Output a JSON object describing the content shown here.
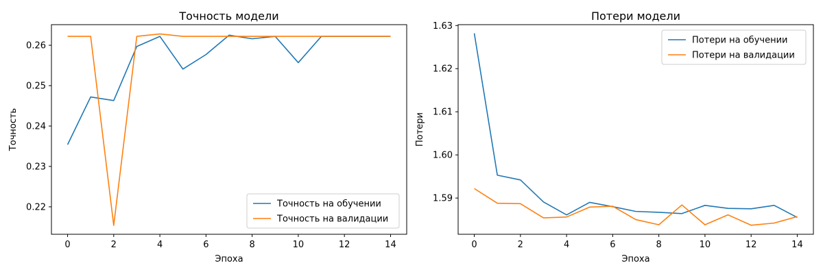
{
  "chart_data": [
    {
      "type": "line",
      "title": "Точность модели",
      "xlabel": "Эпоха",
      "ylabel": "Точность",
      "xlim": [
        -0.7,
        14.7
      ],
      "ylim": [
        0.2132,
        0.2651
      ],
      "xticks": [
        0,
        2,
        4,
        6,
        8,
        10,
        12,
        14
      ],
      "yticks": [
        0.22,
        0.23,
        0.24,
        0.25,
        0.26
      ],
      "ytick_labels": [
        "0.22",
        "0.23",
        "0.24",
        "0.25",
        "0.26"
      ],
      "x": [
        0,
        1,
        2,
        3,
        4,
        5,
        6,
        7,
        8,
        9,
        10,
        11,
        12,
        13,
        14
      ],
      "legend_position": "lower-right",
      "grid": false,
      "series": [
        {
          "name": "Точность на обучении",
          "color": "#1f77b4",
          "values": [
            0.2354,
            0.2472,
            0.2463,
            0.2597,
            0.2622,
            0.2541,
            0.2577,
            0.2625,
            0.2616,
            0.2622,
            0.2557,
            0.2622,
            0.2622,
            0.2622,
            0.2622
          ]
        },
        {
          "name": "Точность на валидации",
          "color": "#ff7f0e",
          "values": [
            0.2622,
            0.2622,
            0.2154,
            0.2622,
            0.2628,
            0.2622,
            0.2622,
            0.2622,
            0.2622,
            0.2622,
            0.2622,
            0.2622,
            0.2622,
            0.2622,
            0.2622
          ]
        }
      ]
    },
    {
      "type": "line",
      "title": "Потери модели",
      "xlabel": "Эпоха",
      "ylabel": "Потери",
      "xlim": [
        -0.7,
        14.7
      ],
      "ylim": [
        1.5816,
        1.6302
      ],
      "xticks": [
        0,
        2,
        4,
        6,
        8,
        10,
        12,
        14
      ],
      "yticks": [
        1.59,
        1.6,
        1.61,
        1.62,
        1.63
      ],
      "ytick_labels": [
        "1.59",
        "1.60",
        "1.61",
        "1.62",
        "1.63"
      ],
      "x": [
        0,
        1,
        2,
        3,
        4,
        5,
        6,
        7,
        8,
        9,
        10,
        11,
        12,
        13,
        14
      ],
      "legend_position": "upper-right",
      "grid": false,
      "series": [
        {
          "name": "Потери на обучении",
          "color": "#1f77b4",
          "values": [
            1.6282,
            1.5953,
            1.5942,
            1.5891,
            1.5861,
            1.589,
            1.588,
            1.5869,
            1.5867,
            1.5864,
            1.5883,
            1.5876,
            1.5875,
            1.5883,
            1.5855
          ]
        },
        {
          "name": "Потери на валидации",
          "color": "#ff7f0e",
          "values": [
            1.5922,
            1.5888,
            1.5887,
            1.5854,
            1.5856,
            1.5879,
            1.5881,
            1.585,
            1.5838,
            1.5884,
            1.5838,
            1.5861,
            1.5837,
            1.5842,
            1.5857
          ]
        }
      ]
    }
  ]
}
